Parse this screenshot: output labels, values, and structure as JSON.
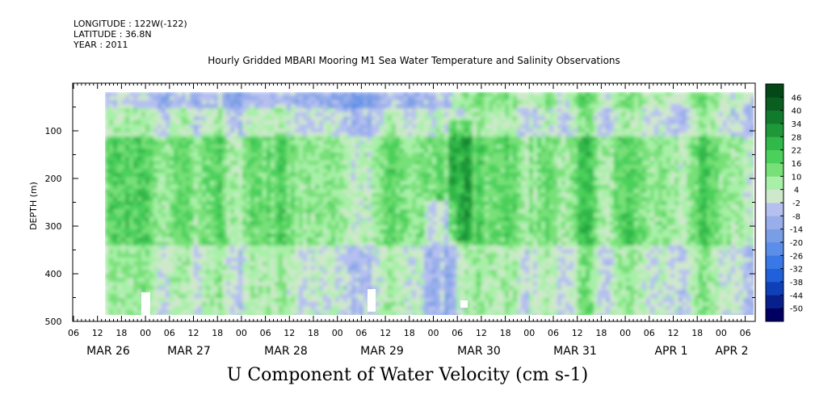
{
  "meta": {
    "longitude": "LONGITUDE : 122W(-122)",
    "latitude": "LATITUDE : 36.8N",
    "year": "YEAR : 2011"
  },
  "chart_data": {
    "type": "heatmap",
    "title": "Hourly Gridded MBARI Mooring M1 Sea Water Temperature and Salinity Observations",
    "subtitle": "U Component of Water Velocity (cm s-1)",
    "ylabel": "DEPTH (m)",
    "xlabel": "",
    "y_reversed": true,
    "ylim": [
      0,
      500
    ],
    "yticks": [
      100,
      200,
      300,
      400,
      500
    ],
    "x_hour_ticks": [
      "06",
      "12",
      "18",
      "00",
      "06",
      "12",
      "18",
      "00",
      "06",
      "12",
      "18",
      "00",
      "06",
      "12",
      "18",
      "00",
      "06",
      "12",
      "18",
      "00",
      "06",
      "12",
      "18",
      "00",
      "06",
      "12",
      "18",
      "00",
      "06"
    ],
    "x_day_labels": [
      "MAR 26",
      "MAR 27",
      "MAR 28",
      "MAR 29",
      "MAR 30",
      "MAR 31",
      "APR  1",
      "APR  2"
    ],
    "colorbar": {
      "levels": [
        -50,
        -44,
        -38,
        -32,
        -26,
        -20,
        -14,
        -8,
        -2,
        4,
        10,
        16,
        22,
        28,
        34,
        40,
        46
      ],
      "level_labels": [
        "46",
        "40",
        "34",
        "28",
        "22",
        "16",
        "10",
        "4",
        "-2",
        "-8",
        "-14",
        "-20",
        "-26",
        "-32",
        "-38",
        "-44",
        "-50"
      ],
      "colors": [
        "#000060",
        "#08208c",
        "#1040b8",
        "#2060d8",
        "#3a78e6",
        "#5a8ee8",
        "#7a9ee6",
        "#98aeea",
        "#b6c0f0",
        "#cfe8cc",
        "#a8f0a8",
        "#78e078",
        "#4cd05c",
        "#30b848",
        "#1e9838",
        "#127a2c",
        "#0a5e20",
        "#044818"
      ]
    },
    "field_description_rows": [
      {
        "depth_range": "10-60",
        "typical_value": -8
      },
      {
        "depth_range": "60-150",
        "typical_value": 4
      },
      {
        "depth_range": "150-350",
        "typical_value": 16
      },
      {
        "depth_range": "350-480",
        "typical_value": 4
      }
    ]
  }
}
